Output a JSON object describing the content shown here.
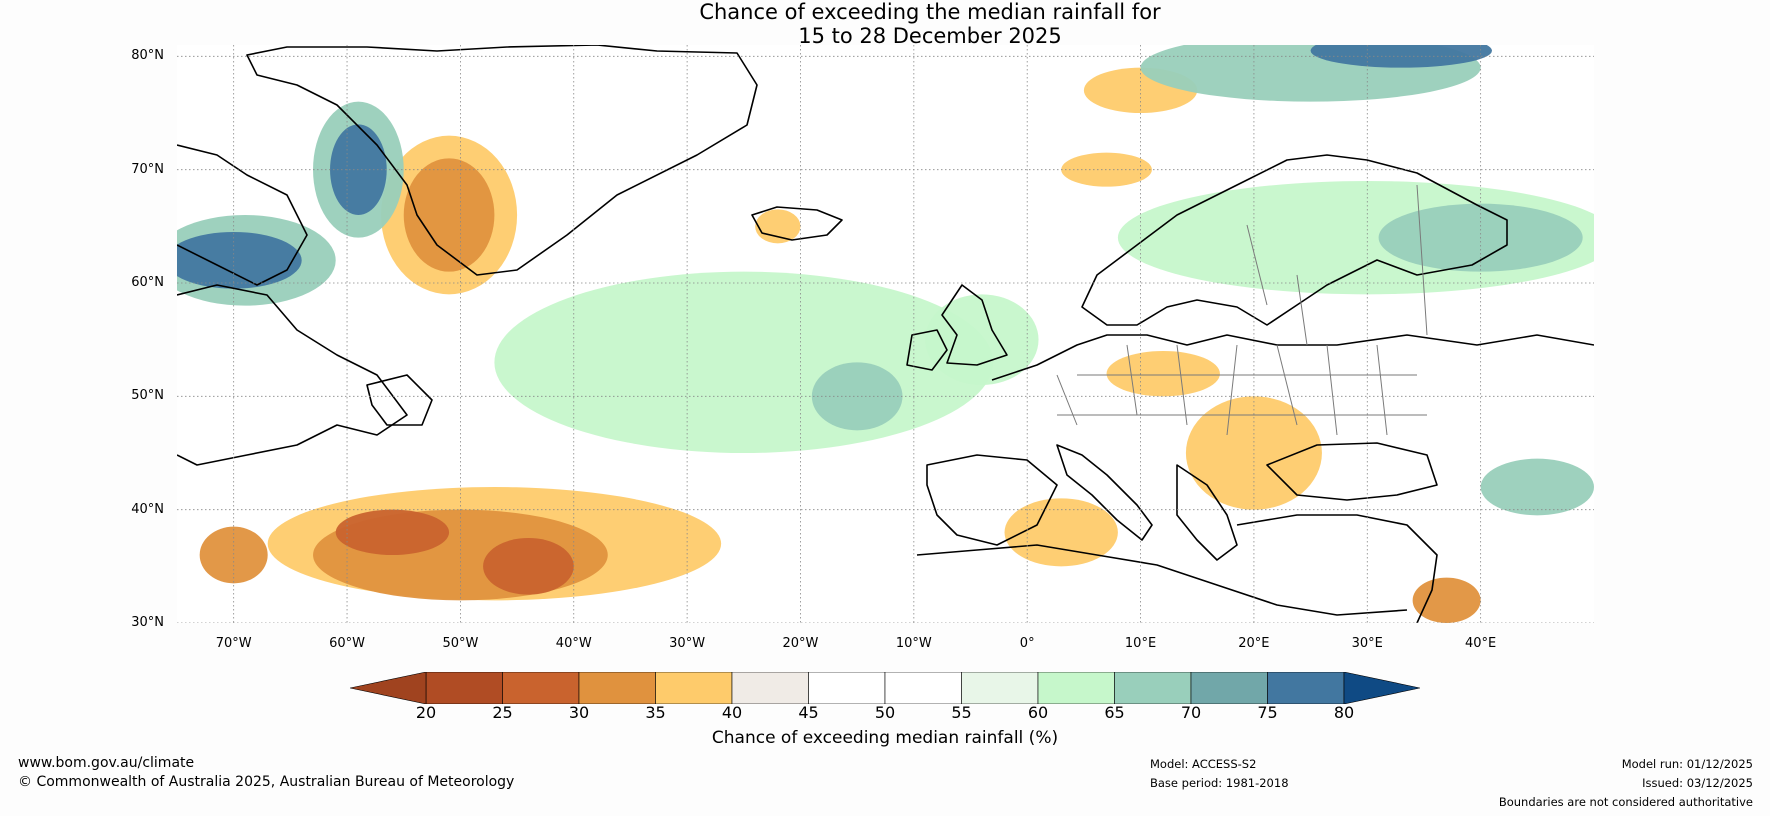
{
  "title": {
    "line1": "Chance of exceeding the median rainfall for",
    "line2": "15 to 28 December 2025"
  },
  "lat_labels": [
    "80°N",
    "70°N",
    "60°N",
    "50°N",
    "40°N",
    "30°N"
  ],
  "lon_labels": [
    "70°W",
    "60°W",
    "50°W",
    "40°W",
    "30°W",
    "20°W",
    "10°W",
    "0°",
    "10°E",
    "20°E",
    "30°E",
    "40°E"
  ],
  "colorbar": {
    "ticks": [
      "20",
      "25",
      "30",
      "35",
      "40",
      "45",
      "50",
      "55",
      "60",
      "65",
      "70",
      "75",
      "80"
    ],
    "under_color": "#a0431f",
    "over_color": "#0f4a84",
    "colors": [
      "#b04c24",
      "#c9632e",
      "#e0923e",
      "#fecb6b",
      "#f0ebe6",
      "#ffffff",
      "#ffffff",
      "#e8f6e8",
      "#c6f7cb",
      "#99cfbb",
      "#71a7a9",
      "#4277a0"
    ],
    "label": "Chance of exceeding median rainfall (%)"
  },
  "footer": {
    "url": "www.bom.gov.au/climate",
    "copyright": "© Commonwealth of Australia 2025, Australian Bureau of Meteorology",
    "model": "Model: ACCESS-S2",
    "base_period": "Base period: 1981-2018",
    "model_run": "Model run: 01/12/2025",
    "issued": "Issued: 03/12/2025",
    "disclaimer": "Boundaries are not considered authoritative"
  },
  "map_extent": {
    "lon_range": [
      -75,
      50
    ],
    "lat_range": [
      30,
      81
    ],
    "graticule_lon": [
      -70,
      -60,
      -50,
      -40,
      -30,
      -20,
      -10,
      0,
      10,
      20,
      30,
      40
    ],
    "graticule_lat": [
      30,
      40,
      50,
      60,
      70,
      80
    ]
  },
  "anomaly_patches": [
    {
      "region": "north-atlantic-sw-dry",
      "lon": -50,
      "lat": 36,
      "rx": 13,
      "ry": 4,
      "category": "30-35"
    },
    {
      "region": "north-atlantic-sw-core",
      "lon": -56,
      "lat": 38,
      "rx": 5,
      "ry": 2,
      "category": "25-30"
    },
    {
      "region": "north-atlantic-sw-core-2",
      "lon": -44,
      "lat": 35,
      "rx": 4,
      "ry": 2.5,
      "category": "25-30"
    },
    {
      "region": "north-atlantic-sw-fringe",
      "lon": -47,
      "lat": 37,
      "rx": 20,
      "ry": 5,
      "category": "35-40"
    },
    {
      "region": "off-iberia-dry",
      "lon": -70,
      "lat": 36,
      "rx": 3,
      "ry": 2.5,
      "category": "30-35"
    },
    {
      "region": "east-greenland-dry",
      "lon": -51,
      "lat": 66,
      "rx": 4,
      "ry": 5,
      "category": "30-35"
    },
    {
      "region": "east-greenland-fringe",
      "lon": -51,
      "lat": 66,
      "rx": 6,
      "ry": 7,
      "category": "35-40"
    },
    {
      "region": "baffin-bay-wet",
      "lon": -59,
      "lat": 70,
      "rx": 2.5,
      "ry": 4,
      "category": "75-80"
    },
    {
      "region": "baffin-bay-wet-fringe",
      "lon": -59,
      "lat": 70,
      "rx": 4,
      "ry": 6,
      "category": "65-70"
    },
    {
      "region": "labrador-sea-wet",
      "lon": -70,
      "lat": 62,
      "rx": 6,
      "ry": 2.5,
      "category": "75-80"
    },
    {
      "region": "labrador-sea-fringe",
      "lon": -69,
      "lat": 62,
      "rx": 8,
      "ry": 4,
      "category": "65-70"
    },
    {
      "region": "north-atlantic-mid-wet",
      "lon": -25,
      "lat": 53,
      "rx": 22,
      "ry": 8,
      "category": "60-65"
    },
    {
      "region": "north-atlantic-mid-core",
      "lon": -15,
      "lat": 50,
      "rx": 4,
      "ry": 3,
      "category": "65-70"
    },
    {
      "region": "arctic-north-wet",
      "lon": 25,
      "lat": 79,
      "rx": 15,
      "ry": 3,
      "category": "65-70"
    },
    {
      "region": "arctic-north-core",
      "lon": 33,
      "lat": 80.5,
      "rx": 8,
      "ry": 1.5,
      "category": "75-80"
    },
    {
      "region": "scandinavia-russia-wet",
      "lon": 30,
      "lat": 64,
      "rx": 22,
      "ry": 5,
      "category": "60-65"
    },
    {
      "region": "scandinavia-russia-core",
      "lon": 40,
      "lat": 64,
      "rx": 9,
      "ry": 3,
      "category": "65-70"
    },
    {
      "region": "balkans-dry",
      "lon": 20,
      "lat": 45,
      "rx": 6,
      "ry": 5,
      "category": "35-40"
    },
    {
      "region": "central-europe-dry",
      "lon": 12,
      "lat": 52,
      "rx": 5,
      "ry": 2,
      "category": "35-40"
    },
    {
      "region": "north-africa-dry",
      "lon": 3,
      "lat": 38,
      "rx": 5,
      "ry": 3,
      "category": "35-40"
    },
    {
      "region": "iceland-dry",
      "lon": -22,
      "lat": 65,
      "rx": 2,
      "ry": 1.5,
      "category": "35-40"
    },
    {
      "region": "norwegian-sea-dry",
      "lon": 7,
      "lat": 70,
      "rx": 4,
      "ry": 1.5,
      "category": "35-40"
    },
    {
      "region": "svalbard-south-dry",
      "lon": 10,
      "lat": 77,
      "rx": 5,
      "ry": 2,
      "category": "35-40"
    },
    {
      "region": "levant-dry",
      "lon": 37,
      "lat": 32,
      "rx": 3,
      "ry": 2,
      "category": "30-35"
    },
    {
      "region": "caspian-wet",
      "lon": 45,
      "lat": 42,
      "rx": 5,
      "ry": 2.5,
      "category": "65-70"
    },
    {
      "region": "british-isles-wet",
      "lon": -4,
      "lat": 55,
      "rx": 5,
      "ry": 4,
      "category": "60-65"
    }
  ]
}
